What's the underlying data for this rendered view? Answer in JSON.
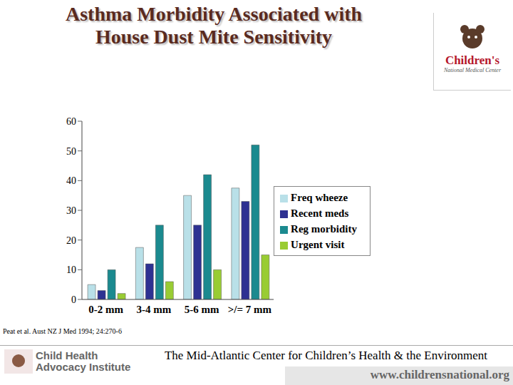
{
  "chart_data": {
    "type": "bar",
    "title": "Asthma Morbidity Associated with House Dust Mite Sensitivity",
    "categories": [
      "0-2 mm",
      "3-4 mm",
      "5-6 mm",
      ">/= 7 mm"
    ],
    "series": [
      {
        "name": "Freq wheeze",
        "color": "#b9e0e8",
        "values": [
          5,
          17.5,
          35,
          37.5
        ]
      },
      {
        "name": "Recent meds",
        "color": "#2e3192",
        "values": [
          3,
          12,
          25,
          33
        ]
      },
      {
        "name": "Reg morbidity",
        "color": "#1b8a8f",
        "values": [
          10,
          25,
          42,
          52
        ]
      },
      {
        "name": "Urgent visit",
        "color": "#99cc33",
        "values": [
          2,
          6,
          10,
          15
        ]
      }
    ],
    "ylim": [
      0,
      60
    ],
    "yticks": [
      0,
      10,
      20,
      30,
      40,
      50,
      60
    ],
    "grid": false,
    "legend": "right"
  },
  "source": "Peat et al. Aust NZ J Med 1994; 24:270-6",
  "footer": {
    "center": "The Mid-Atlantic Center for Children’s Health & the Environment",
    "url": "www.childrensnational.org"
  },
  "logos": {
    "top_right": [
      "Children's",
      "National Medical Center"
    ],
    "bottom_left": [
      "Child Health",
      "Advocacy Institute"
    ]
  }
}
